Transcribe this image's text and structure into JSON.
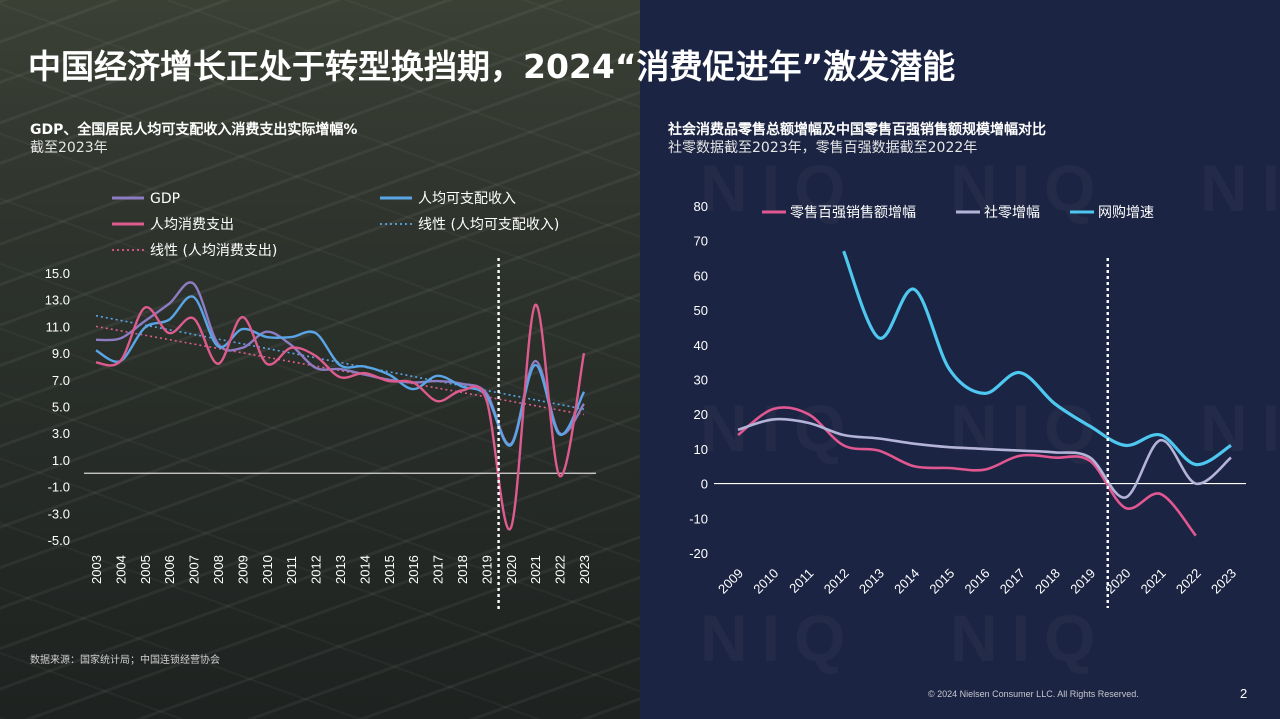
{
  "page": {
    "title": "中国经济增长正处于转型换挡期，2024“消费促进年”激发潜能",
    "source": "数据来源：国家统计局；中国连锁经营协会",
    "copyright": "© 2024 Nielsen Consumer LLC. All Rights Reserved.",
    "page_number": "2",
    "watermark": "NIQ"
  },
  "colors": {
    "gdp": "#8e7cc3",
    "income": "#5aa5e6",
    "consumption": "#dd5b8d",
    "top100": "#e05791",
    "retail": "#b4b4d8",
    "online": "#4ec8f0"
  },
  "chart_data": [
    {
      "type": "line",
      "title": "GDP、全国居民人均可支配收入消费支出实际增幅%",
      "subtitle": "截至2023年",
      "x": [
        "2003",
        "2004",
        "2005",
        "2006",
        "2007",
        "2008",
        "2009",
        "2010",
        "2011",
        "2012",
        "2013",
        "2014",
        "2015",
        "2016",
        "2017",
        "2018",
        "2019",
        "2020",
        "2021",
        "2022",
        "2023"
      ],
      "series": [
        {
          "name": "GDP",
          "key": "gdp",
          "values": [
            10.0,
            10.1,
            11.4,
            12.7,
            14.2,
            9.7,
            9.4,
            10.6,
            9.6,
            7.9,
            7.8,
            7.4,
            7.0,
            6.8,
            6.9,
            6.7,
            6.0,
            2.2,
            8.4,
            3.0,
            5.2
          ]
        },
        {
          "name": "人均可支配收入",
          "key": "income",
          "values": [
            9.2,
            8.4,
            10.9,
            11.5,
            13.2,
            9.5,
            10.8,
            10.2,
            10.2,
            10.5,
            8.1,
            8.0,
            7.4,
            6.3,
            7.3,
            6.5,
            5.8,
            2.1,
            8.1,
            2.9,
            6.1
          ]
        },
        {
          "name": "人均消费支出",
          "key": "consumption",
          "values": [
            8.3,
            8.4,
            12.4,
            10.5,
            11.6,
            8.2,
            11.7,
            8.2,
            9.4,
            8.8,
            7.2,
            7.5,
            6.9,
            6.8,
            5.4,
            6.2,
            5.5,
            -4.1,
            12.6,
            -0.2,
            9.0
          ]
        }
      ],
      "trendlines": [
        {
          "name": "线性 (人均可支配收入)",
          "key": "income",
          "from": 11.8,
          "to": 4.8
        },
        {
          "name": "线性 (人均消费支出)",
          "key": "consumption",
          "from": 11.0,
          "to": 4.4
        }
      ],
      "legend_order": [
        "GDP",
        "人均可支配收入",
        "人均消费支出",
        "线性 (人均可支配收入)",
        "线性 (人均消费支出)"
      ],
      "yticks": [
        "15.0",
        "13.0",
        "11.0",
        "9.0",
        "7.0",
        "5.0",
        "3.0",
        "1.0",
        "-1.0",
        "-3.0",
        "-5.0"
      ],
      "ylim": [
        -5,
        15
      ],
      "zero_line_value": 0,
      "marker_between": [
        "2019",
        "2020"
      ],
      "grid": false,
      "legend": "top"
    },
    {
      "type": "line",
      "title": "社会消费品零售总额增幅及中国零售百强销售额规模增幅对比",
      "subtitle": "社零数据截至2023年，零售百强数据截至2022年",
      "x": [
        "2009",
        "2010",
        "2011",
        "2012",
        "2013",
        "2014",
        "2015",
        "2016",
        "2017",
        "2018",
        "2019",
        "2020",
        "2021",
        "2022",
        "2023"
      ],
      "series": [
        {
          "name": "零售百强销售额增幅",
          "key": "top100",
          "values": [
            14,
            21.5,
            20,
            11,
            9.5,
            5,
            4.5,
            4,
            8,
            7.5,
            6.5,
            -7,
            -3,
            -15,
            null
          ]
        },
        {
          "name": "社零增幅",
          "key": "retail",
          "values": [
            15.5,
            18.5,
            17.5,
            14,
            13,
            11.5,
            10.5,
            10,
            9.5,
            9,
            7.5,
            -4,
            12.5,
            0,
            7.5
          ]
        },
        {
          "name": "网购增速",
          "key": "online",
          "values": [
            null,
            null,
            null,
            67,
            42,
            56,
            33,
            26,
            32,
            23,
            16.5,
            11,
            14,
            5.5,
            11
          ]
        }
      ],
      "yticks": [
        "80",
        "70",
        "60",
        "50",
        "40",
        "30",
        "20",
        "10",
        "0",
        "-10",
        "-20"
      ],
      "ylim": [
        -20,
        80
      ],
      "marker_between": [
        "2019",
        "2020"
      ],
      "grid": false,
      "legend": "top"
    }
  ]
}
